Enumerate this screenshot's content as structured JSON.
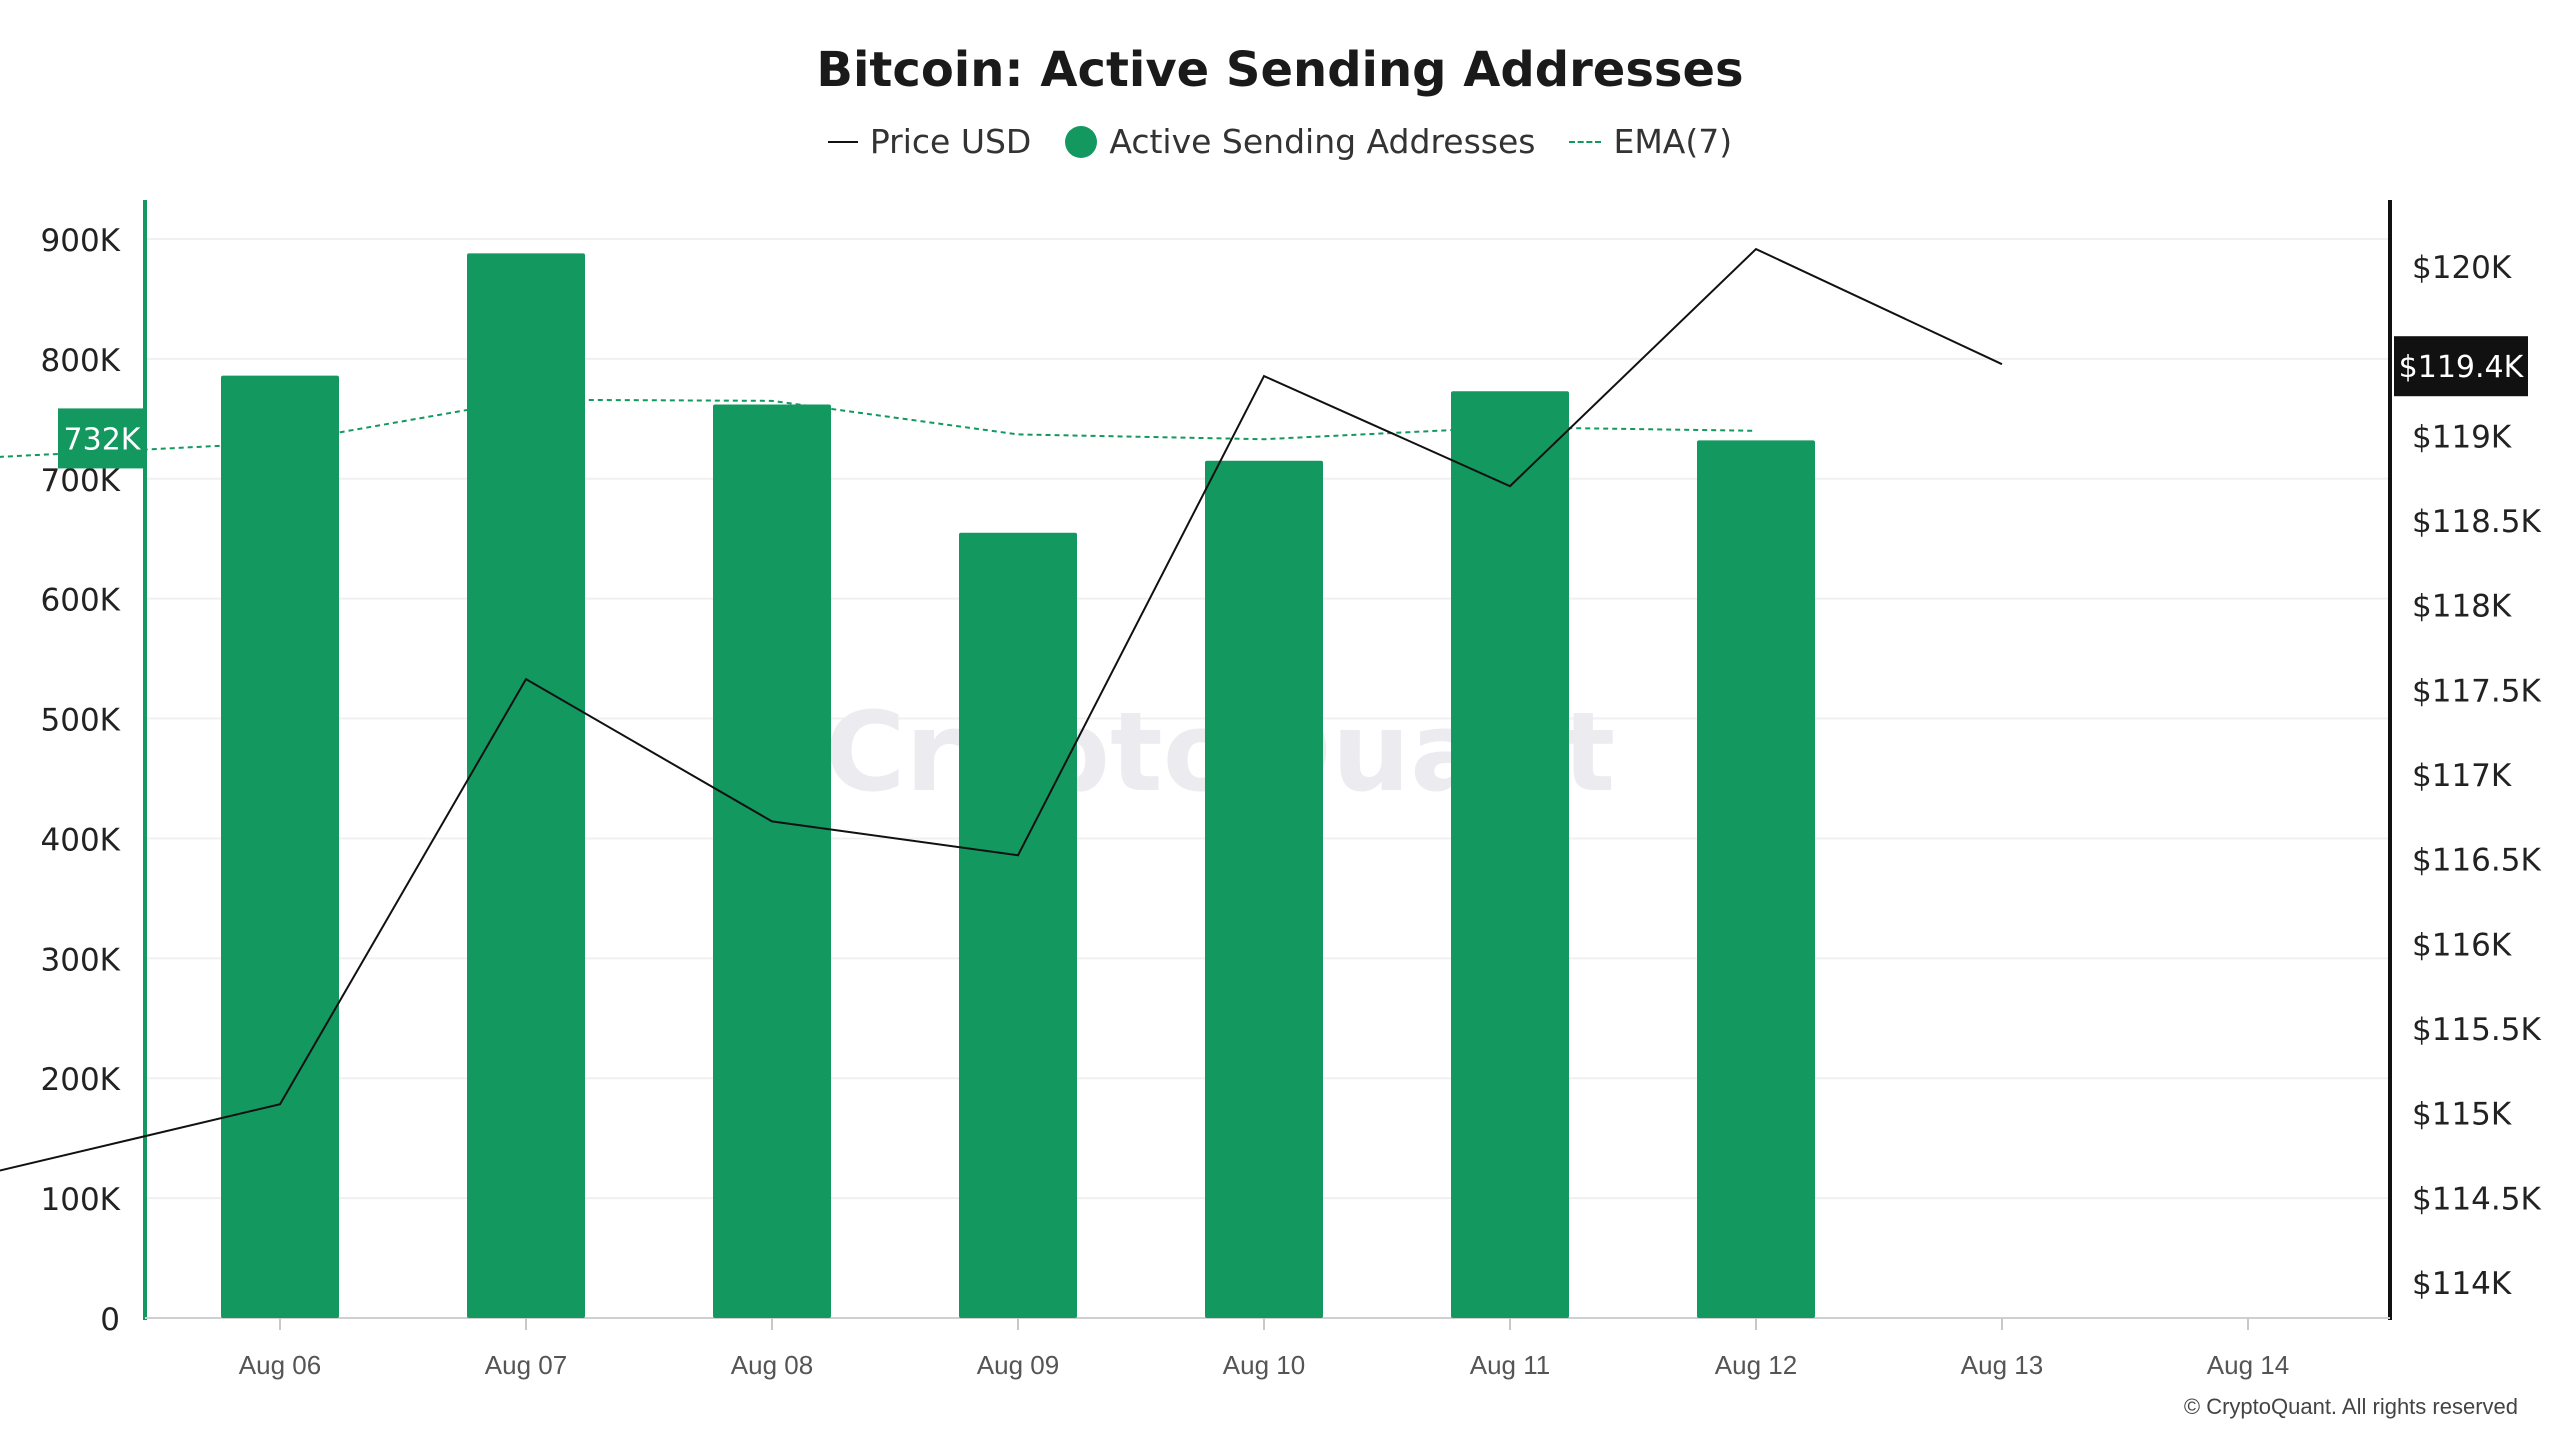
{
  "chart_data": {
    "type": "bar",
    "title": "Bitcoin: Active Sending Addresses",
    "categories": [
      "Aug 06",
      "Aug 07",
      "Aug 08",
      "Aug 09",
      "Aug 10",
      "Aug 11",
      "Aug 12",
      "Aug 13",
      "Aug 14"
    ],
    "series": [
      {
        "name": "Active Sending Addresses",
        "type": "bar",
        "axis": "left",
        "color": "#139860",
        "values": [
          786000,
          888000,
          762000,
          655000,
          715000,
          773000,
          732000,
          null,
          null
        ]
      },
      {
        "name": "EMA(7)",
        "type": "line",
        "style": "dashed",
        "axis": "left",
        "color": "#139860",
        "points": [
          {
            "x": "Aug 05",
            "y": 716000
          },
          {
            "x": "Aug 06",
            "y": 730000
          },
          {
            "x": "Aug 07",
            "y": 766000
          },
          {
            "x": "Aug 08",
            "y": 765000
          },
          {
            "x": "Aug 09",
            "y": 737000
          },
          {
            "x": "Aug 10",
            "y": 733000
          },
          {
            "x": "Aug 11",
            "y": 743000
          },
          {
            "x": "Aug 12",
            "y": 740000
          }
        ]
      },
      {
        "name": "Price USD",
        "type": "line",
        "axis": "right",
        "color": "#111111",
        "points": [
          {
            "x": "Aug 05",
            "y": 114580
          },
          {
            "x": "Aug 06",
            "y": 115050
          },
          {
            "x": "Aug 07",
            "y": 117560
          },
          {
            "x": "Aug 08",
            "y": 116720
          },
          {
            "x": "Aug 09",
            "y": 116520
          },
          {
            "x": "Aug 10",
            "y": 119350
          },
          {
            "x": "Aug 11",
            "y": 118700
          },
          {
            "x": "Aug 12",
            "y": 120100
          },
          {
            "x": "Aug 13",
            "y": 119420
          }
        ]
      }
    ],
    "y_left": {
      "min": 0,
      "max": 900000,
      "ticks": [
        0,
        100000,
        200000,
        300000,
        400000,
        500000,
        600000,
        700000,
        800000,
        900000
      ],
      "tick_labels": [
        "0",
        "100K",
        "200K",
        "300K",
        "400K",
        "500K",
        "600K",
        "700K",
        "800K",
        "900K"
      ]
    },
    "y_right": {
      "min": 114000,
      "max": 120000,
      "ticks": [
        114000,
        114500,
        115000,
        115500,
        116000,
        116500,
        117000,
        117500,
        118000,
        118500,
        119000,
        120000
      ],
      "tick_labels": [
        "$114K",
        "$114.5K",
        "$115K",
        "$115.5K",
        "$116K",
        "$116.5K",
        "$117K",
        "$117.5K",
        "$118K",
        "$118.5K",
        "$119K",
        "$120K"
      ]
    },
    "current_markers": {
      "left": {
        "value": 732000,
        "label": "732K"
      },
      "right": {
        "value": 119420,
        "label": "$119.4K"
      }
    },
    "legend": {
      "position": "top-center",
      "items": [
        {
          "label": "Price USD",
          "marker": "line",
          "color": "#111111"
        },
        {
          "label": "Active Sending Addresses",
          "marker": "dot",
          "color": "#139860"
        },
        {
          "label": "EMA(7)",
          "marker": "dashed-line",
          "color": "#139860"
        }
      ]
    },
    "grid": true,
    "watermark": "CryptoQuant"
  },
  "footer": "© CryptoQuant. All rights reserved"
}
